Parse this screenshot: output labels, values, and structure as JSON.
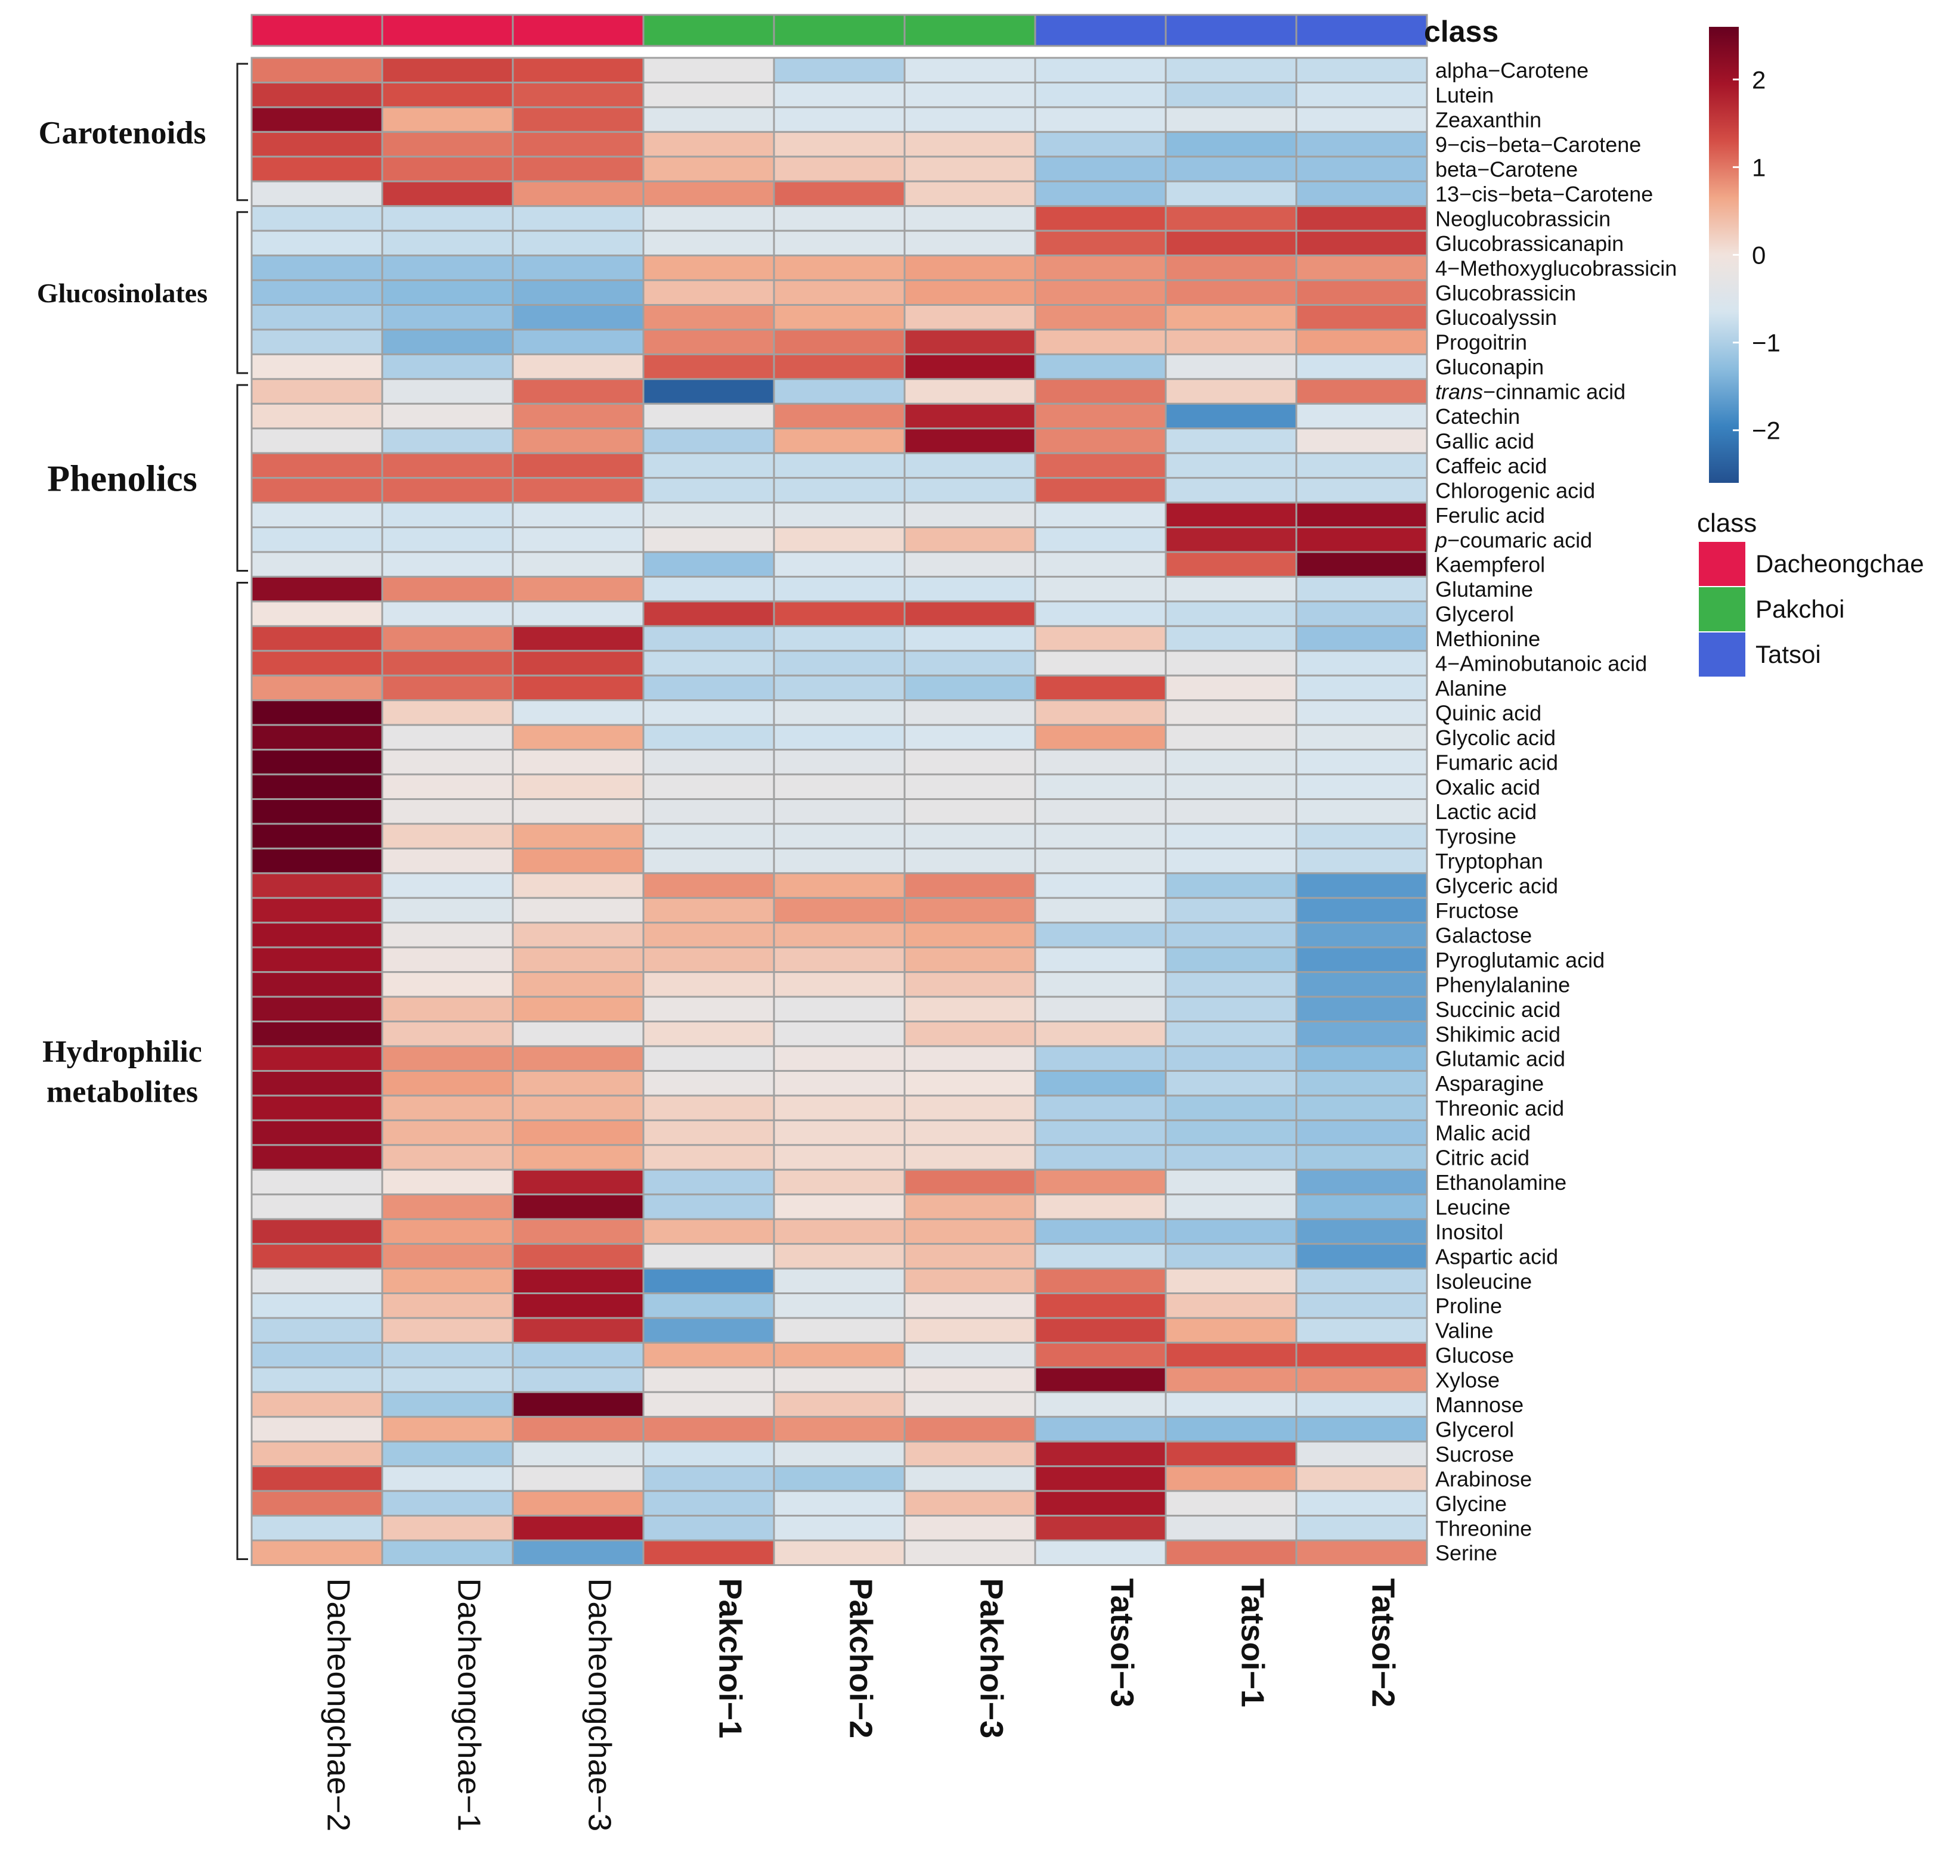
{
  "chart_data": {
    "type": "heatmap",
    "title": "",
    "columns": [
      "Dacheongchae−2",
      "Dacheongchae−1",
      "Dacheongchae−3",
      "Pakchoi−1",
      "Pakchoi−2",
      "Pakchoi−3",
      "Tatsoi−3",
      "Tatsoi−1",
      "Tatsoi−2"
    ],
    "column_class": [
      "Dacheongchae",
      "Dacheongchae",
      "Dacheongchae",
      "Pakchoi",
      "Pakchoi",
      "Pakchoi",
      "Tatsoi",
      "Tatsoi",
      "Tatsoi"
    ],
    "rows": [
      {
        "label": "alpha−Carotene",
        "values": [
          1.0,
          1.4,
          1.3,
          -0.3,
          -1.0,
          -0.6,
          -0.7,
          -0.8,
          -0.8
        ]
      },
      {
        "label": "Lutein",
        "values": [
          1.5,
          1.3,
          1.2,
          -0.3,
          -0.6,
          -0.6,
          -0.7,
          -0.9,
          -0.7
        ]
      },
      {
        "label": "Zeaxanthin",
        "values": [
          2.2,
          0.6,
          1.2,
          -0.5,
          -0.6,
          -0.6,
          -0.6,
          -0.5,
          -0.6
        ]
      },
      {
        "label": "9−cis−beta−Carotene",
        "values": [
          1.4,
          1.0,
          1.1,
          0.4,
          0.2,
          0.2,
          -1.0,
          -1.3,
          -1.2
        ]
      },
      {
        "label": "beta−Carotene",
        "values": [
          1.3,
          1.1,
          1.1,
          0.5,
          0.3,
          0.2,
          -1.2,
          -1.2,
          -1.2
        ]
      },
      {
        "label": "13−cis−beta−Carotene",
        "values": [
          -0.4,
          1.5,
          0.8,
          0.8,
          1.1,
          0.2,
          -1.2,
          -0.8,
          -1.2
        ]
      },
      {
        "label": "Neoglucobrassicin",
        "values": [
          -0.8,
          -0.8,
          -0.8,
          -0.5,
          -0.5,
          -0.5,
          1.3,
          1.2,
          1.5
        ]
      },
      {
        "label": "Glucobrassicanapin",
        "values": [
          -0.7,
          -0.8,
          -0.8,
          -0.5,
          -0.5,
          -0.5,
          1.2,
          1.4,
          1.5
        ]
      },
      {
        "label": "4−Methoxyglucobrassicin",
        "values": [
          -1.2,
          -1.2,
          -1.2,
          0.6,
          0.6,
          0.7,
          0.8,
          0.9,
          0.8
        ]
      },
      {
        "label": "Glucobrassicin",
        "values": [
          -1.2,
          -1.3,
          -1.4,
          0.4,
          0.5,
          0.7,
          0.8,
          0.9,
          1.0
        ]
      },
      {
        "label": "Glucoalyssin",
        "values": [
          -1.0,
          -1.2,
          -1.5,
          0.8,
          0.6,
          0.3,
          0.8,
          0.6,
          1.1
        ]
      },
      {
        "label": "Progoitrin",
        "values": [
          -0.9,
          -1.4,
          -1.2,
          0.9,
          1.0,
          1.6,
          0.4,
          0.4,
          0.7
        ]
      },
      {
        "label": "Gluconapin",
        "values": [
          0.0,
          -1.0,
          0.1,
          1.2,
          1.2,
          2.0,
          -1.1,
          -0.4,
          -0.7
        ]
      },
      {
        "label": "trans−cinnamic acid",
        "values": [
          0.3,
          -0.4,
          1.1,
          -2.4,
          -1.0,
          0.1,
          1.0,
          0.2,
          1.0
        ]
      },
      {
        "label": "Catechin",
        "values": [
          0.1,
          -0.2,
          0.9,
          -0.3,
          0.9,
          1.8,
          0.9,
          -1.8,
          -0.6
        ]
      },
      {
        "label": "Gallic acid",
        "values": [
          -0.3,
          -0.9,
          0.8,
          -1.0,
          0.6,
          2.1,
          0.9,
          -0.8,
          -0.1
        ]
      },
      {
        "label": "Caffeic acid",
        "values": [
          1.1,
          1.1,
          1.2,
          -0.8,
          -0.8,
          -0.8,
          1.1,
          -0.8,
          -0.8
        ]
      },
      {
        "label": "Chlorogenic acid",
        "values": [
          1.1,
          1.1,
          1.1,
          -0.8,
          -0.8,
          -0.8,
          1.2,
          -0.8,
          -0.8
        ]
      },
      {
        "label": "Ferulic acid",
        "values": [
          -0.6,
          -0.7,
          -0.6,
          -0.5,
          -0.5,
          -0.4,
          -0.6,
          1.9,
          2.1
        ]
      },
      {
        "label": "p−coumaric acid",
        "values": [
          -0.7,
          -0.7,
          -0.6,
          -0.2,
          0.1,
          0.4,
          -0.7,
          1.8,
          1.9
        ]
      },
      {
        "label": "Kaempferol",
        "values": [
          -0.5,
          -0.6,
          -0.5,
          -1.2,
          -0.6,
          -0.4,
          -0.5,
          1.2,
          2.4
        ]
      },
      {
        "label": "Glutamine",
        "values": [
          2.2,
          0.9,
          0.8,
          -0.7,
          -0.7,
          -0.7,
          -0.5,
          -0.5,
          -0.8
        ]
      },
      {
        "label": "Glycerol",
        "values": [
          0.0,
          -0.6,
          -0.6,
          1.5,
          1.3,
          1.4,
          -0.7,
          -0.8,
          -1.0
        ]
      },
      {
        "label": "Methionine",
        "values": [
          1.4,
          0.9,
          1.8,
          -0.9,
          -0.8,
          -0.7,
          0.3,
          -0.8,
          -1.2
        ]
      },
      {
        "label": "4−Aminobutanoic acid",
        "values": [
          1.3,
          1.2,
          1.4,
          -0.8,
          -0.9,
          -0.9,
          -0.3,
          -0.3,
          -0.7
        ]
      },
      {
        "label": "Alanine",
        "values": [
          0.8,
          1.1,
          1.3,
          -1.0,
          -0.9,
          -1.1,
          1.3,
          -0.1,
          -0.7
        ]
      },
      {
        "label": "Quinic acid",
        "values": [
          2.6,
          0.2,
          -0.6,
          -0.6,
          -0.5,
          -0.4,
          0.3,
          -0.2,
          -0.6
        ]
      },
      {
        "label": "Glycolic acid",
        "values": [
          2.4,
          -0.3,
          0.6,
          -0.8,
          -0.7,
          -0.6,
          0.7,
          -0.3,
          -0.5
        ]
      },
      {
        "label": "Fumaric acid",
        "values": [
          2.6,
          -0.2,
          -0.1,
          -0.4,
          -0.4,
          -0.3,
          -0.4,
          -0.5,
          -0.6
        ]
      },
      {
        "label": "Oxalic acid",
        "values": [
          2.7,
          -0.1,
          0.1,
          -0.3,
          -0.3,
          -0.3,
          -0.5,
          -0.5,
          -0.6
        ]
      },
      {
        "label": "Lactic acid",
        "values": [
          2.7,
          -0.2,
          -0.2,
          -0.4,
          -0.4,
          -0.3,
          -0.4,
          -0.4,
          -0.5
        ]
      },
      {
        "label": "Tyrosine",
        "values": [
          2.6,
          0.2,
          0.6,
          -0.5,
          -0.5,
          -0.5,
          -0.5,
          -0.6,
          -0.8
        ]
      },
      {
        "label": "Tryptophan",
        "values": [
          2.6,
          -0.1,
          0.7,
          -0.5,
          -0.5,
          -0.5,
          -0.5,
          -0.6,
          -0.8
        ]
      },
      {
        "label": "Glyceric acid",
        "values": [
          1.7,
          -0.6,
          0.1,
          0.8,
          0.6,
          0.9,
          -0.6,
          -1.1,
          -1.7
        ]
      },
      {
        "label": "Fructose",
        "values": [
          1.9,
          -0.5,
          -0.2,
          0.5,
          0.8,
          0.8,
          -0.5,
          -0.9,
          -1.7
        ]
      },
      {
        "label": "Galactose",
        "values": [
          2.0,
          -0.2,
          0.3,
          0.5,
          0.5,
          0.6,
          -1.0,
          -1.0,
          -1.6
        ]
      },
      {
        "label": "Pyroglutamic acid",
        "values": [
          2.0,
          -0.1,
          0.4,
          0.4,
          0.3,
          0.5,
          -0.6,
          -1.1,
          -1.7
        ]
      },
      {
        "label": "Phenylalanine",
        "values": [
          2.1,
          0.0,
          0.5,
          0.1,
          0.1,
          0.3,
          -0.5,
          -0.9,
          -1.6
        ]
      },
      {
        "label": "Succinic acid",
        "values": [
          2.2,
          0.4,
          0.6,
          -0.2,
          -0.3,
          0.1,
          -0.4,
          -0.9,
          -1.6
        ]
      },
      {
        "label": "Shikimic acid",
        "values": [
          2.4,
          0.3,
          -0.3,
          0.1,
          -0.3,
          0.3,
          0.2,
          -0.9,
          -1.5
        ]
      },
      {
        "label": "Glutamic acid",
        "values": [
          1.9,
          0.8,
          0.8,
          -0.3,
          -0.1,
          -0.1,
          -1.0,
          -1.0,
          -1.3
        ]
      },
      {
        "label": "Asparagine",
        "values": [
          2.1,
          0.7,
          0.5,
          -0.2,
          -0.1,
          0.0,
          -1.3,
          -0.9,
          -1.1
        ]
      },
      {
        "label": "Threonic acid",
        "values": [
          2.0,
          0.5,
          0.5,
          0.2,
          0.1,
          0.1,
          -1.0,
          -1.1,
          -1.1
        ]
      },
      {
        "label": "Malic acid",
        "values": [
          2.1,
          0.5,
          0.7,
          0.2,
          0.1,
          0.1,
          -1.0,
          -1.1,
          -1.2
        ]
      },
      {
        "label": "Citric acid",
        "values": [
          2.1,
          0.4,
          0.6,
          0.2,
          0.1,
          0.1,
          -1.0,
          -1.0,
          -1.1
        ]
      },
      {
        "label": "Ethanolamine",
        "values": [
          -0.3,
          0.0,
          1.8,
          -1.0,
          0.2,
          1.0,
          0.8,
          -0.5,
          -1.5
        ]
      },
      {
        "label": "Leucine",
        "values": [
          -0.3,
          0.8,
          2.3,
          -1.0,
          0.0,
          0.5,
          0.1,
          -0.5,
          -1.3
        ]
      },
      {
        "label": "Inositol",
        "values": [
          1.6,
          0.7,
          0.9,
          0.5,
          0.4,
          0.5,
          -1.2,
          -1.2,
          -1.6
        ]
      },
      {
        "label": "Aspartic acid",
        "values": [
          1.4,
          0.8,
          1.2,
          -0.3,
          0.2,
          0.4,
          -0.8,
          -1.0,
          -1.7
        ]
      },
      {
        "label": "Isoleucine",
        "values": [
          -0.4,
          0.6,
          2.0,
          -1.8,
          -0.5,
          0.4,
          1.0,
          0.1,
          -0.9
        ]
      },
      {
        "label": "Proline",
        "values": [
          -0.7,
          0.4,
          2.0,
          -1.1,
          -0.5,
          -0.1,
          1.3,
          0.3,
          -0.9
        ]
      },
      {
        "label": "Valine",
        "values": [
          -0.9,
          0.3,
          1.6,
          -1.6,
          -0.3,
          0.1,
          1.4,
          0.6,
          -0.8
        ]
      },
      {
        "label": "Glucose",
        "values": [
          -1.0,
          -0.9,
          -1.0,
          0.6,
          0.6,
          -0.4,
          1.1,
          1.3,
          1.3
        ]
      },
      {
        "label": "Xylose",
        "values": [
          -0.8,
          -0.8,
          -0.9,
          -0.2,
          -0.2,
          -0.1,
          2.3,
          0.8,
          0.8
        ]
      },
      {
        "label": "Mannose",
        "values": [
          0.4,
          -1.1,
          2.5,
          -0.2,
          0.3,
          -0.2,
          -0.5,
          -0.6,
          -0.7
        ]
      },
      {
        "label": "Glycerol",
        "values": [
          -0.1,
          0.6,
          0.9,
          0.9,
          0.8,
          0.9,
          -1.2,
          -1.3,
          -1.3
        ]
      },
      {
        "label": "Sucrose",
        "values": [
          0.4,
          -1.1,
          -0.5,
          -0.7,
          -0.5,
          0.3,
          1.8,
          1.4,
          -0.4
        ]
      },
      {
        "label": "Arabinose",
        "values": [
          1.4,
          -0.6,
          -0.3,
          -1.0,
          -1.1,
          -0.5,
          1.9,
          0.7,
          0.2
        ]
      },
      {
        "label": "Glycine",
        "values": [
          1.0,
          -1.0,
          0.7,
          -1.0,
          -0.6,
          0.4,
          1.9,
          -0.3,
          -0.7
        ]
      },
      {
        "label": "Threonine",
        "values": [
          -0.8,
          0.3,
          1.9,
          -1.0,
          -0.6,
          -0.1,
          1.6,
          -0.4,
          -0.8
        ]
      },
      {
        "label": "Serine",
        "values": [
          0.6,
          -1.1,
          -1.6,
          1.3,
          0.1,
          -0.2,
          -0.6,
          1.0,
          0.9
        ]
      }
    ],
    "groups": [
      {
        "label": "Carotenoids",
        "lines": [
          "Carotenoids"
        ],
        "start": 0,
        "end": 5
      },
      {
        "label": "Glucosinolates",
        "lines": [
          "Glucosinolates"
        ],
        "start": 6,
        "end": 12
      },
      {
        "label": "Phenolics",
        "lines": [
          "Phenolics"
        ],
        "start": 13,
        "end": 20
      },
      {
        "label": "Hydrophilic metabolites",
        "lines": [
          "Hydrophilic",
          "metabolites"
        ],
        "start": 21,
        "end": 60
      }
    ],
    "class_annotation_title": "class",
    "legend": {
      "title": "class",
      "items": [
        {
          "label": "Dacheongchae",
          "color": "#e31a4d"
        },
        {
          "label": "Pakchoi",
          "color": "#3cb14a"
        },
        {
          "label": "Tatsoi",
          "color": "#4563d8"
        }
      ]
    },
    "color_scale": {
      "min": -2.6,
      "max": 2.6,
      "ticks": [
        2,
        1,
        0,
        -1,
        -2
      ],
      "tick_labels": [
        "2",
        "1",
        "0",
        "−1",
        "−2"
      ],
      "stops": [
        "#23508f",
        "#3a83c0",
        "#8bbcde",
        "#d6e5ef",
        "#f1e3dd",
        "#f1a788",
        "#d44e46",
        "#a51428",
        "#67001f"
      ]
    },
    "italic_prefixes": {
      "trans−cinnamic acid": "trans",
      "p−coumaric acid": "p"
    }
  }
}
